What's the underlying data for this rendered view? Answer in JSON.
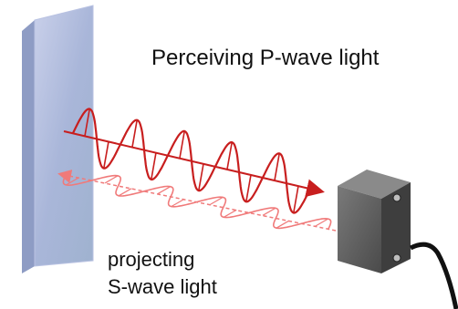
{
  "labels": {
    "perceiving": "Perceiving P-wave light",
    "projecting_line1": "projecting",
    "projecting_line2": "S-wave light"
  },
  "colors": {
    "p_wave": "#c81e1e",
    "s_wave": "#f07a7a",
    "panel": "#a8b4d6",
    "sensor_body": "#5a5a5a",
    "cable": "#111111"
  },
  "icons": {
    "panel": "reflective-panel",
    "sensor": "photoelectric-sensor"
  }
}
